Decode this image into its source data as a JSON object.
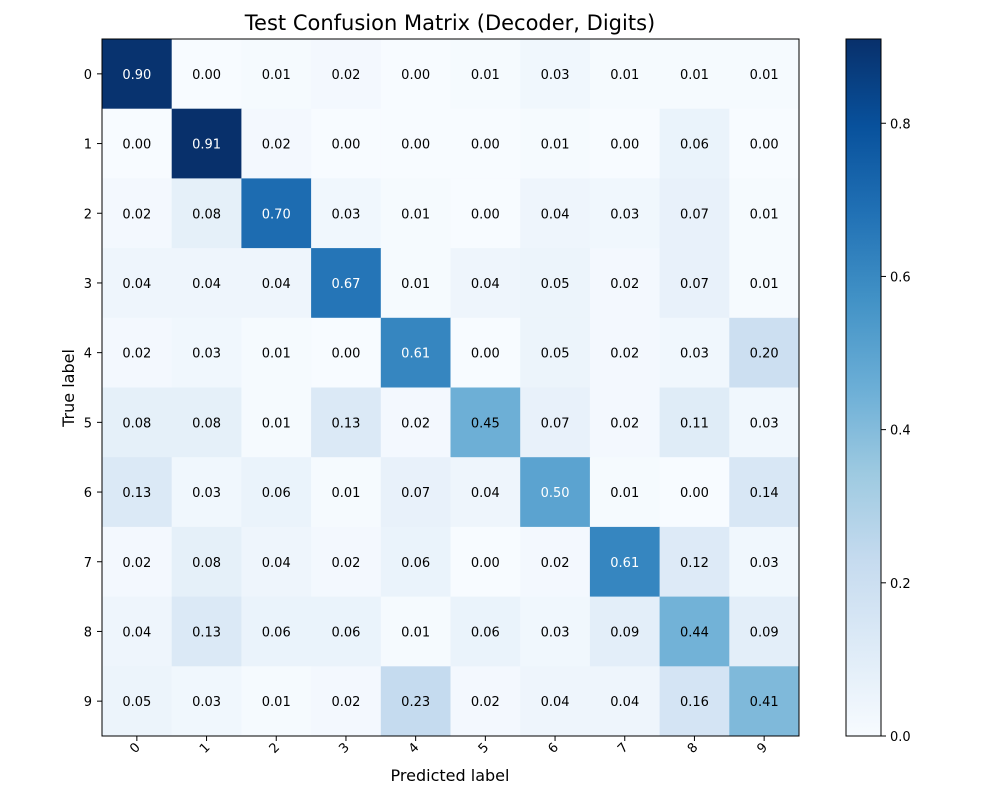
{
  "chart_data": {
    "type": "heatmap",
    "title": "Test Confusion Matrix (Decoder, Digits)",
    "xlabel": "Predicted label",
    "ylabel": "True label",
    "x_categories": [
      "0",
      "1",
      "2",
      "3",
      "4",
      "5",
      "6",
      "7",
      "8",
      "9"
    ],
    "y_categories": [
      "0",
      "1",
      "2",
      "3",
      "4",
      "5",
      "6",
      "7",
      "8",
      "9"
    ],
    "values": [
      [
        0.9,
        0.0,
        0.01,
        0.02,
        0.0,
        0.01,
        0.03,
        0.01,
        0.01,
        0.01
      ],
      [
        0.0,
        0.91,
        0.02,
        0.0,
        0.0,
        0.0,
        0.01,
        0.0,
        0.06,
        0.0
      ],
      [
        0.02,
        0.08,
        0.7,
        0.03,
        0.01,
        0.0,
        0.04,
        0.03,
        0.07,
        0.01
      ],
      [
        0.04,
        0.04,
        0.04,
        0.67,
        0.01,
        0.04,
        0.05,
        0.02,
        0.07,
        0.01
      ],
      [
        0.02,
        0.03,
        0.01,
        0.0,
        0.61,
        0.0,
        0.05,
        0.02,
        0.03,
        0.2
      ],
      [
        0.08,
        0.08,
        0.01,
        0.13,
        0.02,
        0.45,
        0.07,
        0.02,
        0.11,
        0.03
      ],
      [
        0.13,
        0.03,
        0.06,
        0.01,
        0.07,
        0.04,
        0.5,
        0.01,
        0.0,
        0.14
      ],
      [
        0.02,
        0.08,
        0.04,
        0.02,
        0.06,
        0.0,
        0.02,
        0.61,
        0.12,
        0.03
      ],
      [
        0.04,
        0.13,
        0.06,
        0.06,
        0.01,
        0.06,
        0.03,
        0.09,
        0.44,
        0.09
      ],
      [
        0.05,
        0.03,
        0.01,
        0.02,
        0.23,
        0.02,
        0.04,
        0.04,
        0.16,
        0.41
      ]
    ],
    "colormap": "Blues",
    "colorbar": {
      "range": [
        0.0,
        0.91
      ],
      "ticks": [
        0.0,
        0.2,
        0.4,
        0.6,
        0.8
      ],
      "tick_labels": [
        "0.0",
        "0.2",
        "0.4",
        "0.6",
        "0.8"
      ]
    },
    "text_threshold": 0.455,
    "x_tick_rotation": "45 degrees"
  }
}
